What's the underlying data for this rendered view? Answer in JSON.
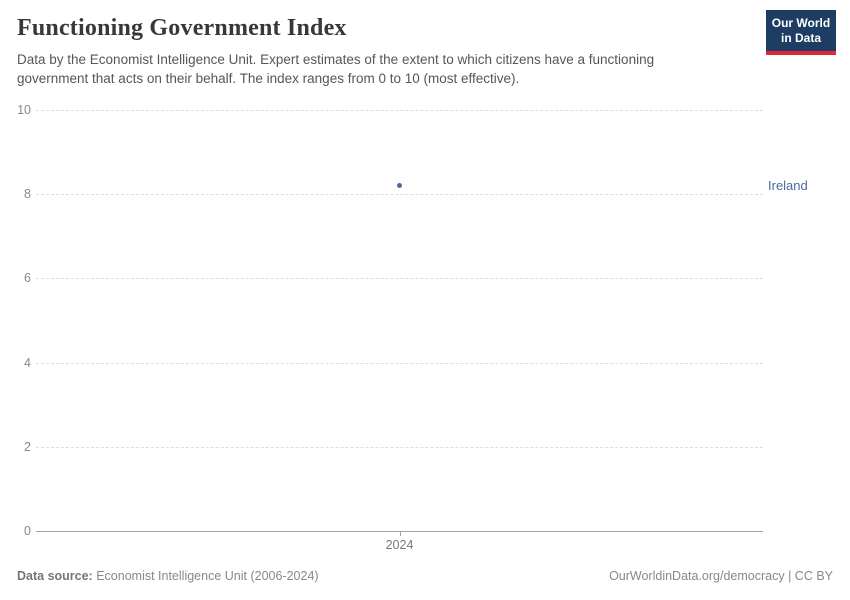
{
  "header": {
    "title": "Functioning Government Index",
    "subtitle": "Data by the Economist Intelligence Unit. Expert estimates of the extent to which citizens have a functioning government that acts on their behalf. The index ranges from 0 to 10 (most effective).",
    "logo": {
      "line1": "Our World",
      "line2": "in Data",
      "background": "#1d3d63",
      "accent": "#e0263c"
    }
  },
  "chart_data": {
    "type": "scatter",
    "title": "Functioning Government Index",
    "xlabel": "",
    "ylabel": "",
    "ylim": [
      0,
      10
    ],
    "yticks": [
      0,
      2,
      4,
      6,
      8,
      10
    ],
    "xticks": [
      "2024"
    ],
    "grid": "horizontal dashed gridlines, solid zero baseline",
    "legend": "entity label to the right of plot area",
    "series": [
      {
        "name": "Ireland",
        "color": "#4c6a9c",
        "points": [
          {
            "x": 2024,
            "y": 8.21
          }
        ]
      }
    ]
  },
  "footer": {
    "source_label": "Data source:",
    "source_value": " Economist Intelligence Unit (2006-2024)",
    "credit": "OurWorldinData.org/democracy | CC BY"
  }
}
